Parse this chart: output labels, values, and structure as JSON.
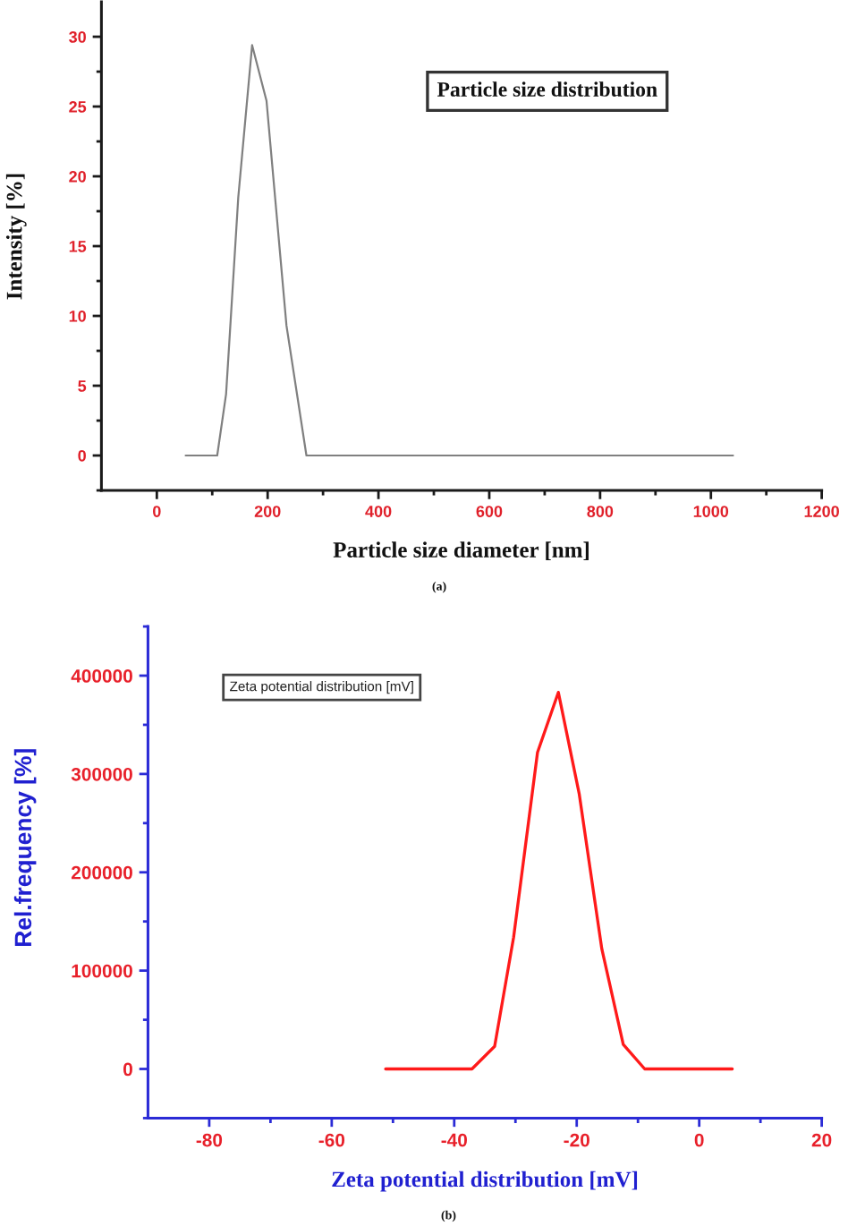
{
  "chart_data": [
    {
      "type": "line",
      "title": "Particle size distribution",
      "xlabel": "Particle size diameter [nm]",
      "ylabel": "Intensity [%]",
      "annotations": [
        "(a)"
      ],
      "x": [
        52,
        109,
        125,
        147,
        172,
        198,
        234,
        270,
        1040
      ],
      "series": [
        {
          "color": "#808080",
          "values": [
            0,
            0,
            4.4,
            18.5,
            29.4,
            25.4,
            9.3,
            0,
            0
          ]
        }
      ],
      "xlim": [
        -100,
        1200
      ],
      "xticks": [
        0,
        {
          "value": 100,
          "label": null
        },
        200,
        {
          "value": 300,
          "label": null
        },
        400,
        {
          "value": 500,
          "label": null
        },
        600,
        {
          "value": 700,
          "label": null
        },
        800,
        {
          "value": 900,
          "label": null
        },
        1000,
        {
          "value": 1100,
          "label": null
        },
        1200
      ],
      "ylim": [
        -2.5,
        32.5
      ],
      "yticks": [
        {
          "value": -2.5,
          "label": null
        },
        0,
        {
          "value": 2.5,
          "label": null
        },
        5,
        {
          "value": 7.5,
          "label": null
        },
        10,
        {
          "value": 12.5,
          "label": null
        },
        15,
        {
          "value": 17.5,
          "label": null
        },
        20,
        {
          "value": 22.5,
          "label": null
        },
        25,
        {
          "value": 27.5,
          "label": null
        },
        30
      ]
    },
    {
      "type": "line",
      "title": "Zeta potential distribution [mV]",
      "xlabel": "Zeta potential distribution [mV]",
      "ylabel": "Rel.frequency [%]",
      "annotations": [
        "(b)"
      ],
      "x": [
        -51.2,
        -37.1,
        -33.4,
        -30.3,
        -26.4,
        -23.0,
        -19.6,
        -15.9,
        -12.4,
        -8.9,
        5.4
      ],
      "series": [
        {
          "color": "#ff1a1a",
          "values": [
            0,
            0,
            23000,
            134000,
            322000,
            383000,
            280000,
            122000,
            25000,
            0,
            0
          ]
        }
      ],
      "xlim": [
        -90,
        20
      ],
      "xticks": [
        -80,
        {
          "value": -70,
          "label": null
        },
        -60,
        {
          "value": -50,
          "label": null
        },
        -40,
        {
          "value": -30,
          "label": null
        },
        -20,
        {
          "value": -10,
          "label": null
        },
        0,
        {
          "value": 10,
          "label": null
        },
        20
      ],
      "ylim": [
        -50000,
        450000
      ],
      "yticks": [
        {
          "value": -50000,
          "label": null
        },
        0,
        {
          "value": 50000,
          "label": null
        },
        100000,
        {
          "value": 150000,
          "label": null
        },
        200000,
        {
          "value": 250000,
          "label": null
        },
        300000,
        {
          "value": 350000,
          "label": null
        },
        400000,
        {
          "value": 450000,
          "label": null
        }
      ]
    }
  ]
}
